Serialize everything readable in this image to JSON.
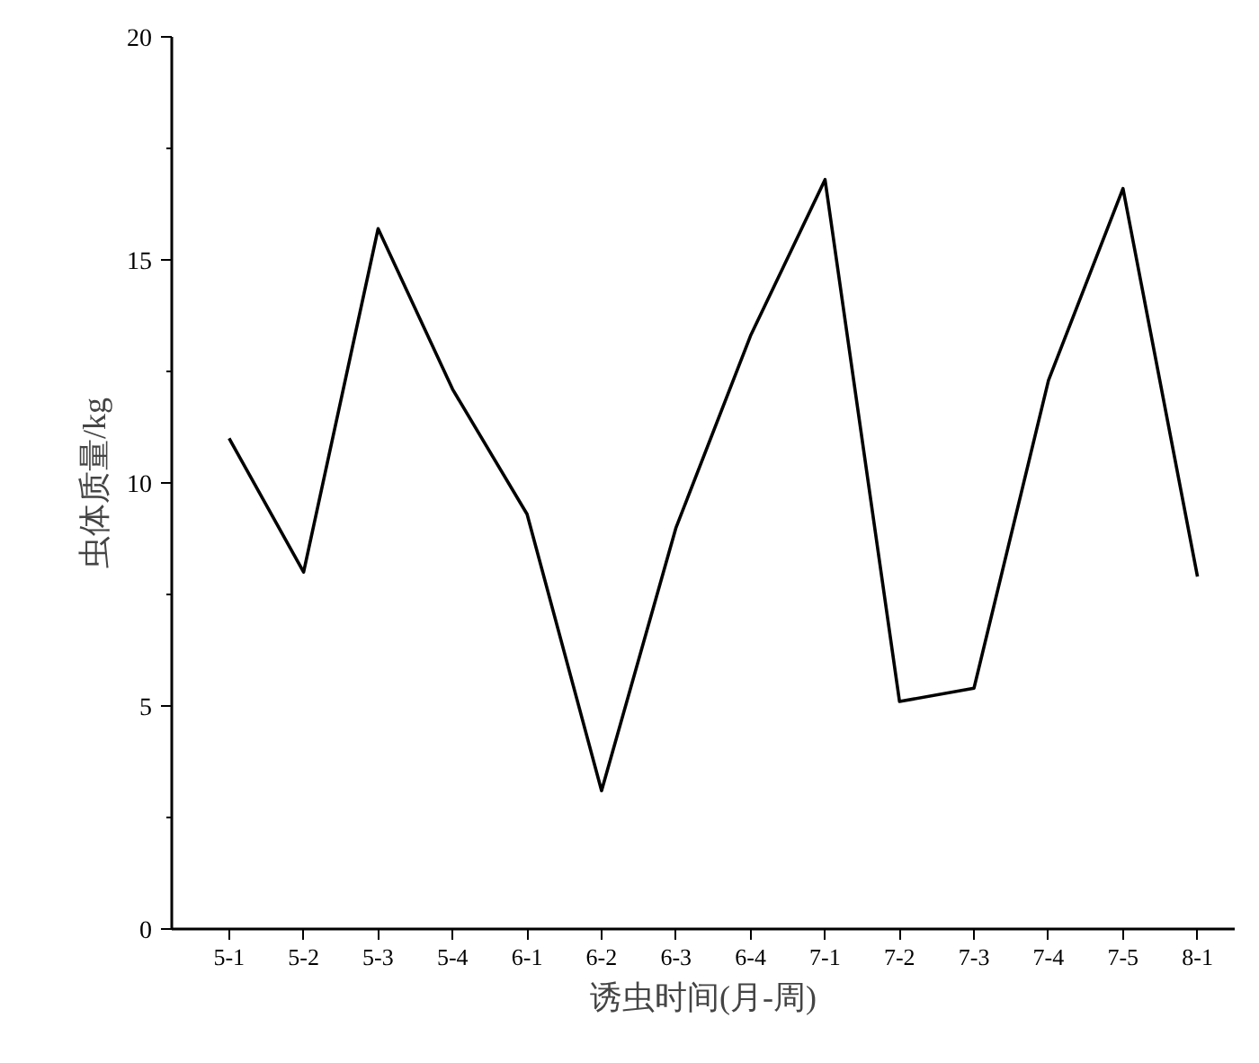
{
  "chart_data": {
    "type": "line",
    "xlabel": "诱虫时间(月-周)",
    "ylabel": "虫体质量/kg",
    "categories": [
      "5-1",
      "5-2",
      "5-3",
      "5-4",
      "6-1",
      "6-2",
      "6-3",
      "6-4",
      "7-1",
      "7-2",
      "7-3",
      "7-4",
      "7-5",
      "8-1"
    ],
    "series": [
      {
        "color": "#000000",
        "values": [
          11.0,
          8.0,
          15.7,
          12.1,
          9.3,
          3.1,
          9.0,
          13.3,
          16.8,
          5.1,
          5.4,
          12.3,
          16.6,
          7.9
        ]
      }
    ],
    "ylim": [
      0,
      20
    ],
    "yticks": [
      0,
      5,
      10,
      15,
      20
    ],
    "grid": false,
    "marker": "none",
    "line_style": "solid"
  }
}
